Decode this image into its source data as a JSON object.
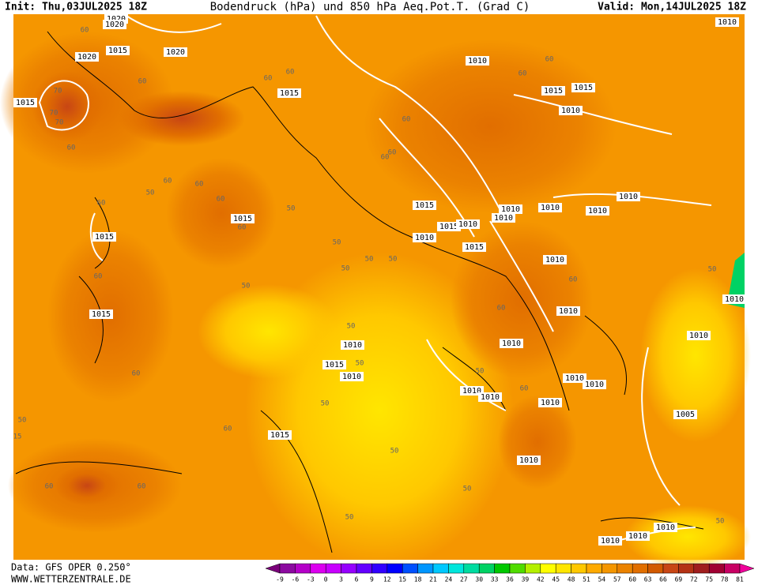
{
  "header": {
    "init": "Init: Thu,03JUL2025 18Z",
    "title": "Bodendruck (hPa) und 850 hPa Aeq.Pot.T. (Grad C)",
    "valid": "Valid: Mon,14JUL2025 18Z"
  },
  "footer": {
    "data": "Data: GFS OPER 0.250°",
    "site": "WWW.WETTERZENTRALE.DE"
  },
  "colorbar": {
    "ticks": [
      -9,
      -6,
      -3,
      0,
      3,
      6,
      9,
      12,
      15,
      18,
      21,
      24,
      27,
      30,
      33,
      36,
      39,
      42,
      45,
      48,
      51,
      54,
      57,
      60,
      63,
      66,
      69,
      72,
      75,
      78,
      81
    ],
    "colors": [
      "#7a007a",
      "#8c0aa0",
      "#b400c8",
      "#dc00f0",
      "#c800ff",
      "#9600ff",
      "#6400ff",
      "#3200ff",
      "#0000ff",
      "#0050ff",
      "#0096ff",
      "#00c8ff",
      "#00e6dc",
      "#00dca0",
      "#00d264",
      "#00c800",
      "#50dc00",
      "#b4f000",
      "#ffff00",
      "#ffe600",
      "#ffc800",
      "#ffaa00",
      "#f59600",
      "#eb8200",
      "#e16e00",
      "#d25a00",
      "#c84614",
      "#b43214",
      "#a01e1e",
      "#a00032",
      "#c80064",
      "#f0009b"
    ]
  },
  "labels": [
    "1020",
    "1020",
    "60",
    "1020",
    "1015",
    "1020",
    "60",
    "1015",
    "70",
    "70",
    "70",
    "60",
    "60",
    "60",
    "1015",
    "1010",
    "60",
    "60",
    "1015",
    "1015",
    "1010",
    "1010",
    "60",
    "60",
    "60",
    "60",
    "60",
    "50",
    "60",
    "60",
    "1015",
    "60",
    "50",
    "1015",
    "1015",
    "1010",
    "1010",
    "1015",
    "1010",
    "1010",
    "1010",
    "1010",
    "1010",
    "1015",
    "50",
    "50",
    "50",
    "50",
    "1010",
    "60",
    "50",
    "50",
    "60",
    "1010",
    "1015",
    "60",
    "1010",
    "50",
    "1010",
    "1010",
    "1010",
    "1015",
    "50",
    "1010",
    "60",
    "50",
    "1010",
    "1010",
    "60",
    "1010",
    "1010",
    "1010",
    "50",
    "50",
    "1005",
    "60",
    "1015",
    "15",
    "50",
    "1010",
    "60",
    "60",
    "50",
    "50",
    "50",
    "1010",
    "1010",
    "1010"
  ]
}
